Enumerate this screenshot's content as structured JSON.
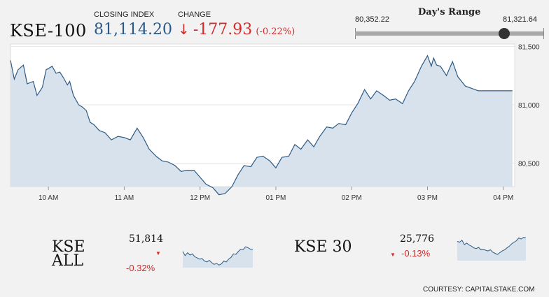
{
  "header": {
    "index_name": "KSE-100",
    "closing_label": "CLOSING INDEX",
    "closing_value": "81,114.20",
    "change_label": "CHANGE",
    "change_arrow": "↓",
    "change_value": "-177.93",
    "change_percent": "(-0.22%)"
  },
  "days_range": {
    "title": "Day's Range",
    "low": "80,352.22",
    "high": "81,321.64",
    "current_fraction": 0.79
  },
  "chart_data": {
    "type": "area",
    "title": "",
    "x_labels": [
      "10 AM",
      "11 AM",
      "12 PM",
      "01 PM",
      "02 PM",
      "03 PM",
      "04 PM"
    ],
    "y_tick_labels": [
      "81,500",
      "81,000",
      "80,500"
    ],
    "y_ticks": [
      81500,
      81000,
      80500
    ],
    "ylim": [
      80300,
      81520
    ],
    "xlim": [
      9.5,
      16.15
    ],
    "grid": true,
    "series": [
      {
        "x": [
          9.5,
          9.55,
          9.6,
          9.67,
          9.72,
          9.8,
          9.85,
          9.92,
          9.97,
          10.05,
          10.1,
          10.15,
          10.2,
          10.25,
          10.28,
          10.33,
          10.4,
          10.45,
          10.5,
          10.55,
          10.6,
          10.67,
          10.75,
          10.83,
          10.92,
          11.0,
          11.08,
          11.17,
          11.25,
          11.33,
          11.42,
          11.5,
          11.58,
          11.67,
          11.75,
          11.83,
          11.92,
          12.0,
          12.08,
          12.17,
          12.25,
          12.33,
          12.42,
          12.5,
          12.58,
          12.67,
          12.75,
          12.83,
          12.92,
          13.0,
          13.08,
          13.17,
          13.25,
          13.33,
          13.42,
          13.5,
          13.58,
          13.67,
          13.75,
          13.83,
          13.92,
          14.0,
          14.08,
          14.17,
          14.25,
          14.33,
          14.42,
          14.5,
          14.58,
          14.67,
          14.75,
          14.83,
          14.92,
          15.0,
          15.05,
          15.08,
          15.12,
          15.17,
          15.25,
          15.33,
          15.4,
          15.5,
          15.67,
          15.83,
          16.0,
          16.12
        ],
        "y": [
          81380,
          81220,
          81300,
          81340,
          81180,
          81200,
          81080,
          81150,
          81300,
          81330,
          81270,
          81280,
          81230,
          81170,
          81200,
          81080,
          81000,
          80980,
          80950,
          80850,
          80830,
          80780,
          80760,
          80700,
          80730,
          80720,
          80700,
          80800,
          80720,
          80620,
          80560,
          80520,
          80510,
          80480,
          80430,
          80440,
          80440,
          80380,
          80320,
          80290,
          80230,
          80240,
          80300,
          80400,
          80480,
          80470,
          80550,
          80560,
          80520,
          80460,
          80550,
          80560,
          80660,
          80620,
          80700,
          80640,
          80730,
          80810,
          80800,
          80840,
          80830,
          80930,
          81010,
          81130,
          81050,
          81120,
          81080,
          81040,
          81050,
          81010,
          81120,
          81200,
          81330,
          81420,
          81330,
          81400,
          81340,
          81330,
          81250,
          81370,
          81240,
          81160,
          81120,
          81120,
          81120,
          81120
        ]
      }
    ]
  },
  "mini_charts": [
    {
      "name_line1": "KSE",
      "name_line2": "ALL",
      "value": "51,814",
      "arrow": "▼",
      "change": "-0.32%",
      "spark": [
        0.62,
        0.45,
        0.57,
        0.47,
        0.52,
        0.4,
        0.35,
        0.3,
        0.32,
        0.22,
        0.18,
        0.25,
        0.15,
        0.08,
        0.12,
        0.05,
        0.1,
        0.22,
        0.18,
        0.3,
        0.38,
        0.52,
        0.5,
        0.62,
        0.72,
        0.7,
        0.82,
        0.78,
        0.72,
        0.72
      ]
    },
    {
      "name_line1": "KSE 30",
      "name_line2": "",
      "value": "25,776",
      "arrow": "▼",
      "change": "-0.13%",
      "spark": [
        0.75,
        0.72,
        0.8,
        0.62,
        0.68,
        0.6,
        0.55,
        0.48,
        0.45,
        0.5,
        0.4,
        0.42,
        0.38,
        0.35,
        0.4,
        0.3,
        0.25,
        0.2,
        0.28,
        0.35,
        0.4,
        0.48,
        0.55,
        0.65,
        0.72,
        0.78,
        0.9,
        0.85,
        0.92,
        0.9
      ]
    }
  ],
  "courtesy": "COURTESY: CAPITALSTAKE.COM",
  "colors": {
    "line": "#2e5b85",
    "area": "#d7e2ec",
    "closing": "#2a5a8a",
    "negative": "#d42a2a"
  }
}
